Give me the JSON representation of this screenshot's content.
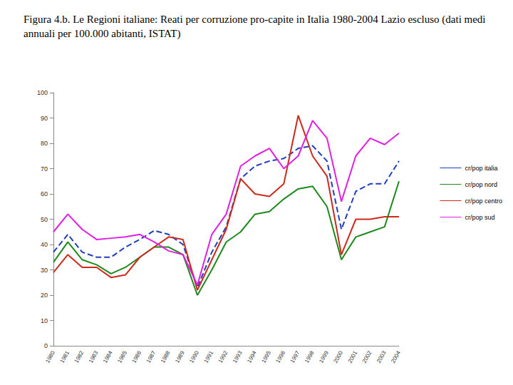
{
  "chart_data": {
    "type": "line",
    "title": "Figura 4.b. Le Regioni italiane: Reati per corruzione pro-capite in Italia 1980-2004 Lazio escluso (dati medi annuali per 100.000 abitanti, ISTAT)",
    "categories": [
      "1980",
      "1981",
      "1982",
      "1983",
      "1984",
      "1985",
      "1986",
      "1987",
      "1988",
      "1989",
      "1990",
      "1991",
      "1992",
      "1993",
      "1994",
      "1995",
      "1996",
      "1997",
      "1998",
      "1999",
      "2000",
      "2001",
      "2002",
      "2003",
      "2004"
    ],
    "series": [
      {
        "name": "cr/pop italia",
        "color": "#1f3fbf",
        "line_style": "dashed",
        "marker": "none",
        "values": [
          37,
          44,
          37,
          35,
          35,
          39,
          42,
          45.5,
          44,
          40,
          23,
          37,
          47,
          66,
          71,
          73,
          74,
          78,
          79,
          73,
          46,
          61,
          64,
          64,
          73
        ]
      },
      {
        "name": "cr/pop nord",
        "color": "#1e8a1e",
        "line_style": "solid",
        "marker": "none",
        "values": [
          33,
          41,
          34,
          32,
          28.5,
          31,
          35,
          39,
          39,
          36,
          20,
          30,
          41,
          45,
          52,
          53,
          58,
          62,
          63,
          55,
          34,
          43,
          45,
          47,
          65
        ]
      },
      {
        "name": "cr/pop centro",
        "color": "#cc2a1a",
        "line_style": "solid",
        "marker": "none",
        "values": [
          29,
          36,
          31,
          31,
          27,
          28,
          35,
          39,
          43,
          42,
          22,
          34,
          46,
          66,
          60,
          59,
          64,
          91,
          75,
          67,
          36,
          50,
          50,
          51,
          51
        ]
      },
      {
        "name": "cr/pop sud",
        "color": "#e020e0",
        "line_style": "solid",
        "marker": "none",
        "values": [
          45,
          52,
          46,
          42,
          42.5,
          43,
          44,
          41,
          37.5,
          36,
          24,
          44,
          52,
          71,
          75,
          78,
          70,
          75,
          89,
          82,
          57,
          75,
          82,
          79.5,
          84
        ]
      }
    ],
    "ylim": [
      0,
      100
    ],
    "yticks": [
      0,
      10,
      20,
      30,
      40,
      50,
      60,
      70,
      80,
      90,
      100
    ],
    "grid": false,
    "legend": "right"
  }
}
